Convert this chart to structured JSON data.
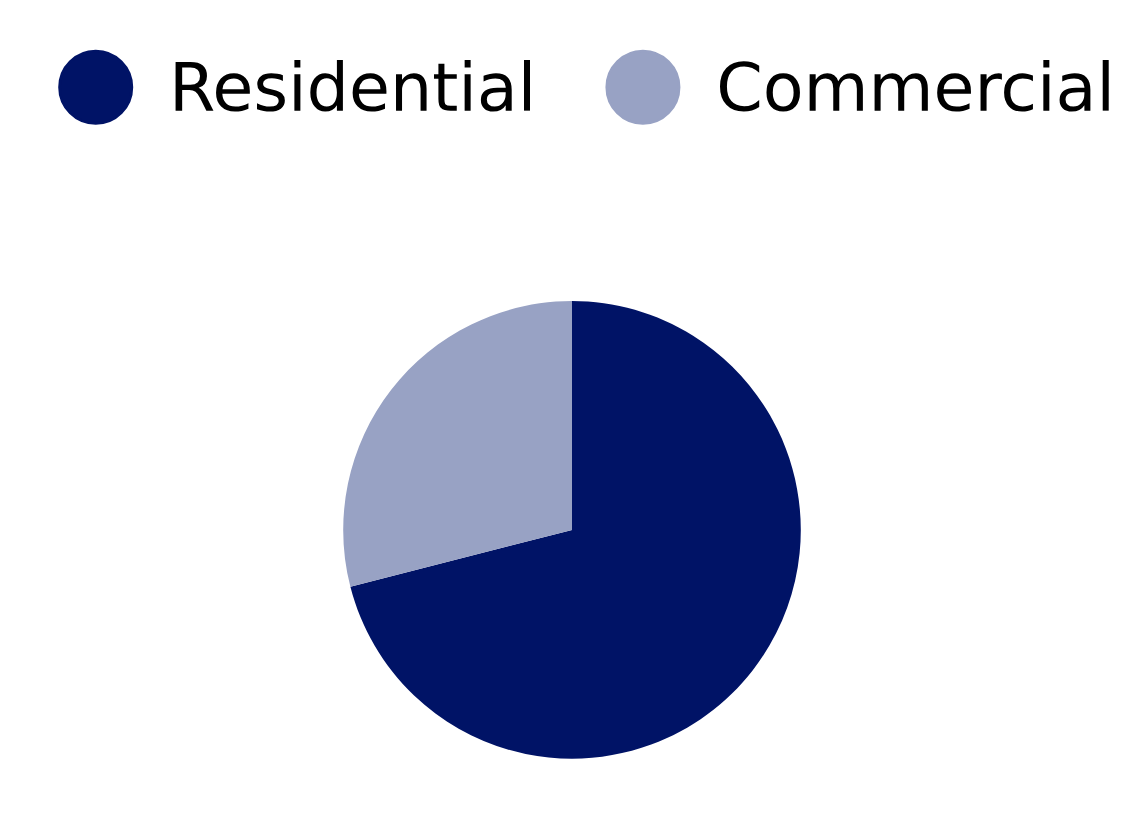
{
  "chart_data": {
    "type": "pie",
    "categories": [
      "Residential",
      "Commercial"
    ],
    "values": [
      71,
      29
    ],
    "colors": [
      "#001366",
      "#98a2c4"
    ],
    "legend": "top"
  }
}
